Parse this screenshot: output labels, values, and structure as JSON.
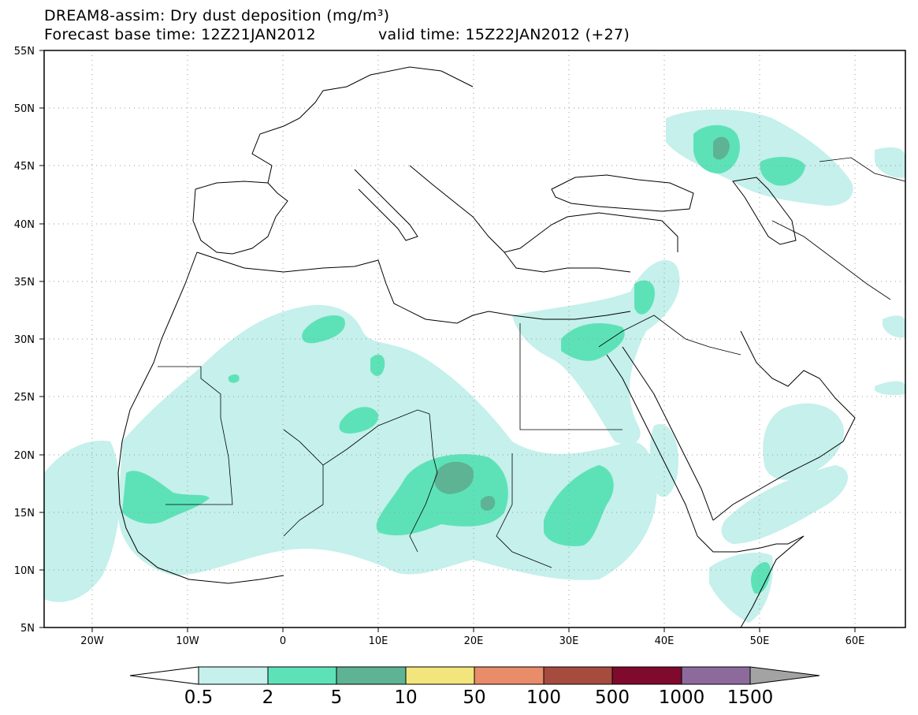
{
  "title": {
    "line1": "DREAM8-assim: Dry dust deposition (mg/m³)",
    "line2_base": "Forecast base time: 12Z21JAN2012",
    "line2_valid": "valid time: 15Z22JAN2012 (+27)"
  },
  "axes": {
    "lat_labels": [
      "55N",
      "50N",
      "45N",
      "40N",
      "35N",
      "30N",
      "25N",
      "20N",
      "15N",
      "10N",
      "5N"
    ],
    "lon_labels": [
      "20W",
      "10W",
      "0",
      "10E",
      "20E",
      "30E",
      "40E",
      "50E",
      "60E"
    ],
    "lon_range": [
      -25,
      65
    ],
    "lat_range": [
      5,
      55
    ],
    "grid": "dotted"
  },
  "colorbar": {
    "labels": [
      "0.5",
      "2",
      "5",
      "10",
      "50",
      "100",
      "500",
      "1000",
      "1500"
    ],
    "colors": [
      "#ffffff",
      "#c5f0eb",
      "#5de2b8",
      "#5db394",
      "#f1e57c",
      "#e98c6a",
      "#a64c3f",
      "#7f0a2e",
      "#8c6b9c",
      "#a3a3a3"
    ]
  },
  "legend": {
    "shading": "dust deposition bins"
  }
}
